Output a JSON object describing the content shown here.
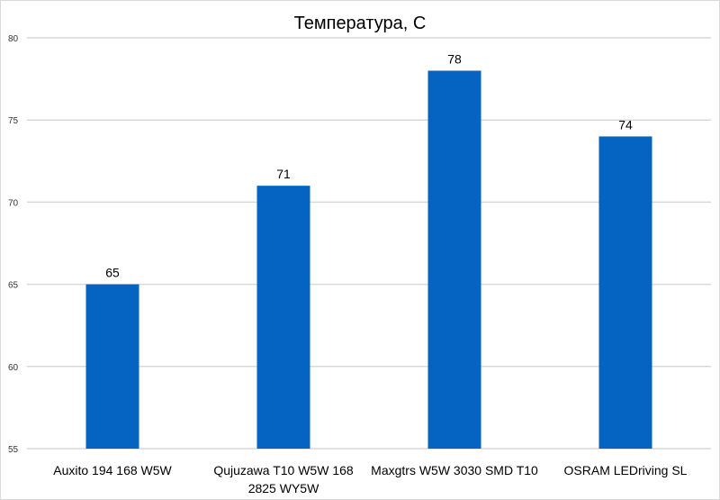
{
  "chart_data": {
    "type": "bar",
    "title": "Температура, С",
    "xlabel": "",
    "ylabel": "",
    "ylim": [
      55,
      80
    ],
    "yticks": [
      55,
      60,
      65,
      70,
      75,
      80
    ],
    "grid": true,
    "categories": [
      [
        "Auxito 194 168 W5W"
      ],
      [
        "Qujuzawa T10 W5W 168",
        "2825 WY5W"
      ],
      [
        "Maxgtrs W5W 3030 SMD T10"
      ],
      [
        "OSRAM LEDriving SL"
      ]
    ],
    "values": [
      65,
      71,
      78,
      74
    ],
    "bar_color": "#0563c1",
    "grid_color": "#d9d9d9"
  }
}
